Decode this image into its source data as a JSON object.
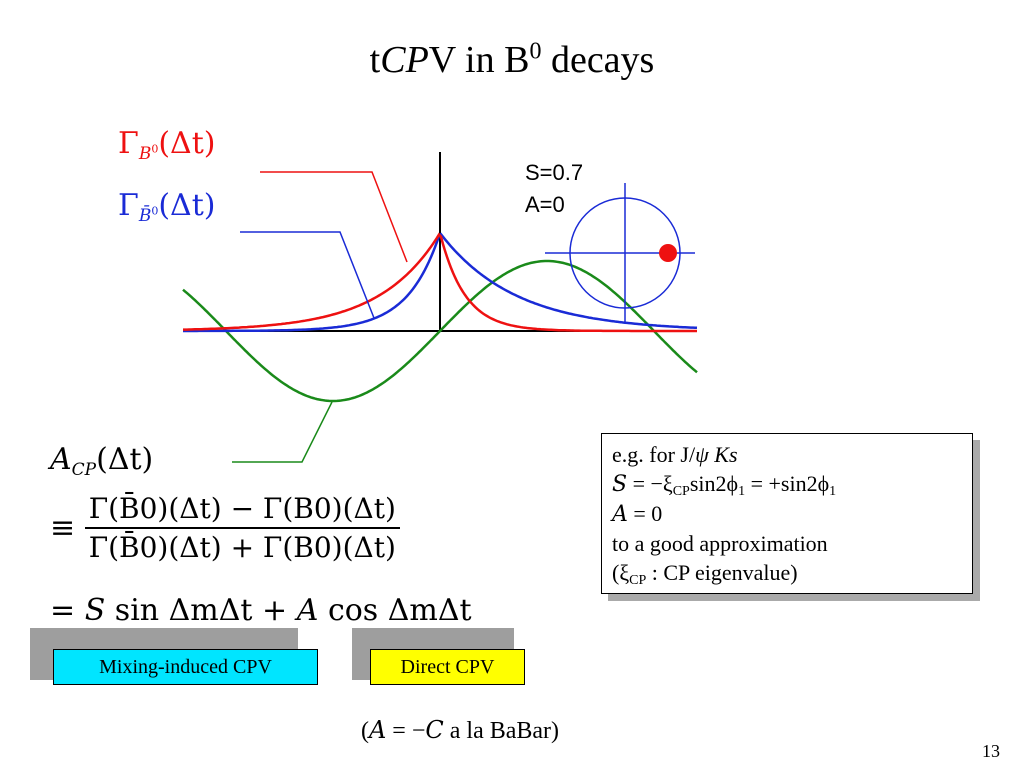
{
  "title": {
    "prefix": "t",
    "cp": "CP",
    "suffix": "V in B",
    "superscript": "0",
    "rest": " decays"
  },
  "legend": {
    "gamma_b0": {
      "symbol": "Γ",
      "sub": "B",
      "sup": "0",
      "arg": "(Δt)"
    },
    "gamma_b0bar": {
      "symbol": "Γ",
      "sub": "B̄",
      "sup": "0",
      "arg": "(Δt)"
    }
  },
  "params_box": {
    "s_label": "S=0.7",
    "a_label": "A=0"
  },
  "formula": {
    "acp": "A",
    "acp_sub": "CP",
    "acp_arg": "(Δt)",
    "equiv": "≡",
    "numerator": "Γ(B̄0)(Δt) − Γ(B0)(Δt)",
    "denominator": "Γ(B̄0)(Δt) + Γ(B0)(Δt)",
    "eq": "=",
    "s": "S",
    "sin_term": "sin ΔmΔt",
    "plus": "+",
    "a": "A",
    "cos_term": "cos ΔmΔt"
  },
  "labels": {
    "mixing": "Mixing-induced CPV",
    "direct": "Direct CPV"
  },
  "note": {
    "line1_prefix": "e.g. for J/",
    "psi": "ψ",
    "ks": "Ks",
    "line2_s": "S",
    "line2_eq": " = −ξ",
    "line2_cp": "CP",
    "line2_rest": "sin2ϕ",
    "line2_one": "1",
    "line2_tail": " = +sin2ϕ",
    "line2_one_b": "1",
    "line3_a": "A",
    "line3_rest": " = 0",
    "line4": "to a good approximation",
    "line5_open": "(ξ",
    "line5_cp": "CP",
    "line5_rest": " : CP eigenvalue)"
  },
  "footnote": {
    "open": "(",
    "a": "A",
    "eq": " = −",
    "c": "C",
    "rest": "  a la BaBar)"
  },
  "page_number": "13",
  "colors": {
    "red": "#ee1111",
    "blue": "#1a2bd6",
    "green": "#1a8a1a",
    "mixing_bg": "#00e5ff",
    "direct_bg": "#ffff00"
  }
}
